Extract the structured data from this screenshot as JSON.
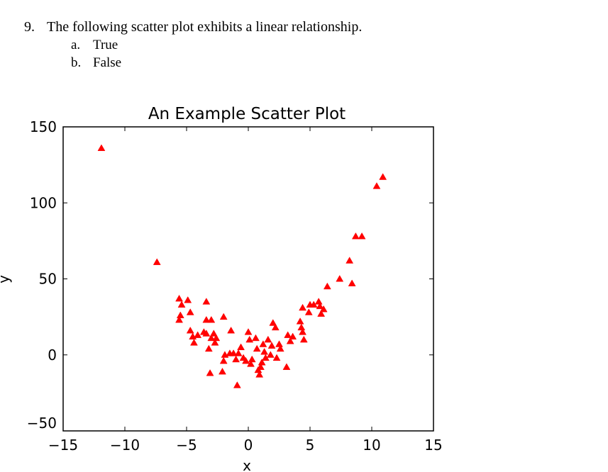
{
  "question": {
    "number": "9.",
    "text": "The following scatter plot exhibits a linear relationship.",
    "options": [
      {
        "letter": "a.",
        "text": "True"
      },
      {
        "letter": "b.",
        "text": "False"
      }
    ]
  },
  "chart_data": {
    "type": "scatter",
    "title": "An Example Scatter Plot",
    "xlabel": "x",
    "ylabel": "y",
    "xlim": [
      -15,
      15
    ],
    "ylim": [
      -50,
      150
    ],
    "xticks": [
      -15,
      -10,
      -5,
      0,
      5,
      10,
      15
    ],
    "yticks": [
      -50,
      0,
      50,
      100,
      150
    ],
    "xtick_labels": [
      "−15",
      "−10",
      "−5",
      "0",
      "5",
      "10",
      "15"
    ],
    "ytick_labels": [
      "−50",
      "0",
      "50",
      "100",
      "150"
    ],
    "marker": "triangle",
    "color": "#ff0000",
    "grid": false,
    "series": [
      {
        "points": [
          [
            -11.9,
            136
          ],
          [
            -7.4,
            61
          ],
          [
            -5.6,
            37
          ],
          [
            -5.4,
            33
          ],
          [
            -4.9,
            36
          ],
          [
            -5.5,
            26
          ],
          [
            -5.6,
            23
          ],
          [
            -4.7,
            28
          ],
          [
            -3.4,
            35
          ],
          [
            -3.4,
            23
          ],
          [
            -3.0,
            23
          ],
          [
            -4.7,
            16
          ],
          [
            -4.5,
            12
          ],
          [
            -4.4,
            8
          ],
          [
            -4.1,
            13
          ],
          [
            -3.6,
            15
          ],
          [
            -3.4,
            14
          ],
          [
            -3.0,
            11
          ],
          [
            -2.8,
            14
          ],
          [
            -2.7,
            8
          ],
          [
            -2.6,
            11
          ],
          [
            -3.2,
            4
          ],
          [
            -2.0,
            25
          ],
          [
            -1.4,
            16
          ],
          [
            -3.1,
            -12
          ],
          [
            -2.1,
            -11
          ],
          [
            -2.0,
            -4
          ],
          [
            -1.9,
            0
          ],
          [
            -1.5,
            1
          ],
          [
            -1.2,
            1
          ],
          [
            -1.0,
            -3
          ],
          [
            -0.8,
            1
          ],
          [
            -0.6,
            5
          ],
          [
            -0.4,
            -2
          ],
          [
            -0.2,
            -4
          ],
          [
            0.0,
            15
          ],
          [
            0.1,
            10
          ],
          [
            0.2,
            -6
          ],
          [
            0.3,
            -3
          ],
          [
            0.6,
            11
          ],
          [
            0.7,
            4
          ],
          [
            0.8,
            -10
          ],
          [
            0.9,
            -13
          ],
          [
            1.0,
            -8
          ],
          [
            1.1,
            -5
          ],
          [
            1.2,
            7
          ],
          [
            1.3,
            2
          ],
          [
            1.4,
            -2
          ],
          [
            1.6,
            10
          ],
          [
            1.8,
            0
          ],
          [
            1.9,
            6
          ],
          [
            2.0,
            21
          ],
          [
            2.2,
            18
          ],
          [
            2.3,
            -2
          ],
          [
            2.5,
            7
          ],
          [
            2.6,
            4
          ],
          [
            3.1,
            -8
          ],
          [
            3.2,
            13
          ],
          [
            3.4,
            9
          ],
          [
            3.6,
            12
          ],
          [
            4.2,
            22
          ],
          [
            4.3,
            18
          ],
          [
            4.4,
            15
          ],
          [
            4.5,
            10
          ],
          [
            4.4,
            31
          ],
          [
            4.9,
            28
          ],
          [
            5.0,
            33
          ],
          [
            5.3,
            33
          ],
          [
            5.7,
            35
          ],
          [
            5.8,
            32
          ],
          [
            5.9,
            27
          ],
          [
            6.1,
            30
          ],
          [
            6.4,
            45
          ],
          [
            7.4,
            50
          ],
          [
            8.2,
            62
          ],
          [
            8.4,
            47
          ],
          [
            8.7,
            78
          ],
          [
            9.2,
            78
          ],
          [
            10.4,
            111
          ],
          [
            10.9,
            117
          ],
          [
            -0.9,
            -20
          ]
        ]
      }
    ]
  }
}
